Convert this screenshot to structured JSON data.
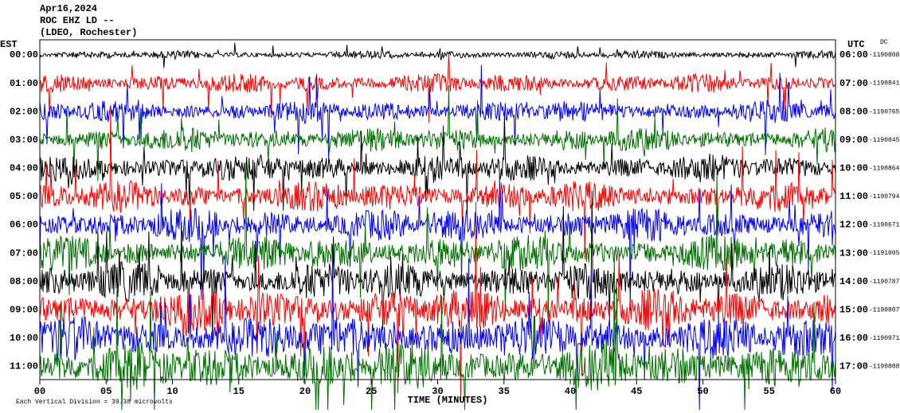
{
  "chart_data": {
    "type": "helicorder",
    "title": "Apr16,2024",
    "subtitle": "ROC EHZ LD --",
    "network": "(LDEO, Rochester)",
    "left_axis_title": "EST",
    "right_axis_title": "UTC",
    "offset_title": "DC",
    "x_label": "TIME (MINUTES)",
    "scale_note": "Each Vertical Division = 39.38 microvolts",
    "xlim": [
      0,
      60
    ],
    "xticks": [
      {
        "value": 0,
        "label": "00"
      },
      {
        "value": 5,
        "label": "05"
      },
      10,
      15,
      20,
      25,
      30,
      35,
      40,
      45,
      50,
      55,
      60
    ],
    "trace_colors": [
      "#000000",
      "#ff0000",
      "#0000ff",
      "#007000"
    ],
    "rows": [
      {
        "est": "00:00",
        "utc": "06:00",
        "dc": "-1190808"
      },
      {
        "est": "01:00",
        "utc": "07:00",
        "dc": "-1190841"
      },
      {
        "est": "02:00",
        "utc": "08:00",
        "dc": "-1190765"
      },
      {
        "est": "03:00",
        "utc": "09:00",
        "dc": "-1190845"
      },
      {
        "est": "04:00",
        "utc": "10:00",
        "dc": "-1190864"
      },
      {
        "est": "05:00",
        "utc": "11:00",
        "dc": "-1190794"
      },
      {
        "est": "06:00",
        "utc": "12:00",
        "dc": "-1190671"
      },
      {
        "est": "07:00",
        "utc": "13:00",
        "dc": "-1191005"
      },
      {
        "est": "08:00",
        "utc": "14:00",
        "dc": "-1190787"
      },
      {
        "est": "09:00",
        "utc": "15:00",
        "dc": "-1190807"
      },
      {
        "est": "10:00",
        "utc": "16:00",
        "dc": "-1190971"
      },
      {
        "est": "11:00",
        "utc": "17:00",
        "dc": "-1190808"
      }
    ]
  }
}
